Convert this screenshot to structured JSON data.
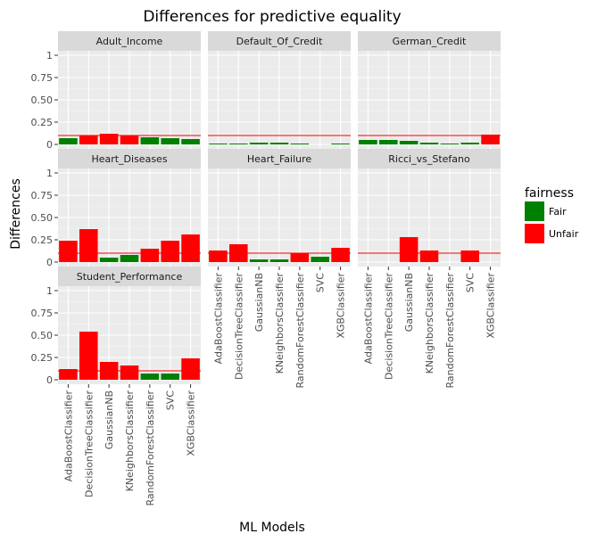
{
  "chart_data": {
    "type": "bar",
    "title": "Differences for predictive equality",
    "xlabel": "ML Models",
    "ylabel": "Differences",
    "ylim": [
      -0.05,
      1.05
    ],
    "yticks": [
      0,
      0.25,
      0.5,
      0.75,
      1
    ],
    "ytick_labels": [
      "0",
      "0.25",
      "0.50",
      "0.75",
      "1"
    ],
    "threshold": 0.1,
    "categories": [
      "AdaBoostClassifier",
      "DecisionTreeClassifier",
      "GaussianNB",
      "KNeighborsClassifier",
      "RandomForestClassifier",
      "SVC",
      "XGBClassifier"
    ],
    "legend": {
      "title": "fairness",
      "position": "right",
      "items": [
        {
          "label": "Fair",
          "color": "#008000"
        },
        {
          "label": "Unfair",
          "color": "#ff0000"
        }
      ]
    },
    "panels": [
      {
        "name": "Adult_Income",
        "values": [
          0.07,
          0.1,
          0.12,
          0.1,
          0.08,
          0.07,
          0.06
        ],
        "fairness": [
          "Fair",
          "Unfair",
          "Unfair",
          "Unfair",
          "Fair",
          "Fair",
          "Fair"
        ]
      },
      {
        "name": "Default_Of_Credit",
        "values": [
          0.01,
          0.01,
          0.02,
          0.02,
          0.01,
          0.0,
          0.01
        ],
        "fairness": [
          "Fair",
          "Fair",
          "Fair",
          "Fair",
          "Fair",
          "Fair",
          "Fair"
        ]
      },
      {
        "name": "German_Credit",
        "values": [
          0.05,
          0.05,
          0.04,
          0.02,
          0.01,
          0.02,
          0.11
        ],
        "fairness": [
          "Fair",
          "Fair",
          "Fair",
          "Fair",
          "Fair",
          "Fair",
          "Unfair"
        ]
      },
      {
        "name": "Heart_Diseases",
        "values": [
          0.24,
          0.37,
          0.05,
          0.08,
          0.15,
          0.24,
          0.31
        ],
        "fairness": [
          "Unfair",
          "Unfair",
          "Fair",
          "Fair",
          "Unfair",
          "Unfair",
          "Unfair"
        ]
      },
      {
        "name": "Heart_Failure",
        "values": [
          0.13,
          0.2,
          0.03,
          0.03,
          0.1,
          0.06,
          0.16
        ],
        "fairness": [
          "Unfair",
          "Unfair",
          "Fair",
          "Fair",
          "Unfair",
          "Fair",
          "Unfair"
        ]
      },
      {
        "name": "Ricci_vs_Stefano",
        "values": [
          0.0,
          0.0,
          0.28,
          0.13,
          0.0,
          0.13,
          0.0
        ],
        "fairness": [
          "Fair",
          "Fair",
          "Unfair",
          "Unfair",
          "Fair",
          "Unfair",
          "Fair"
        ]
      },
      {
        "name": "Student_Performance",
        "values": [
          0.12,
          0.54,
          0.2,
          0.16,
          0.07,
          0.07,
          0.24
        ],
        "fairness": [
          "Unfair",
          "Unfair",
          "Unfair",
          "Unfair",
          "Fair",
          "Fair",
          "Unfair"
        ]
      }
    ],
    "grid": true
  }
}
